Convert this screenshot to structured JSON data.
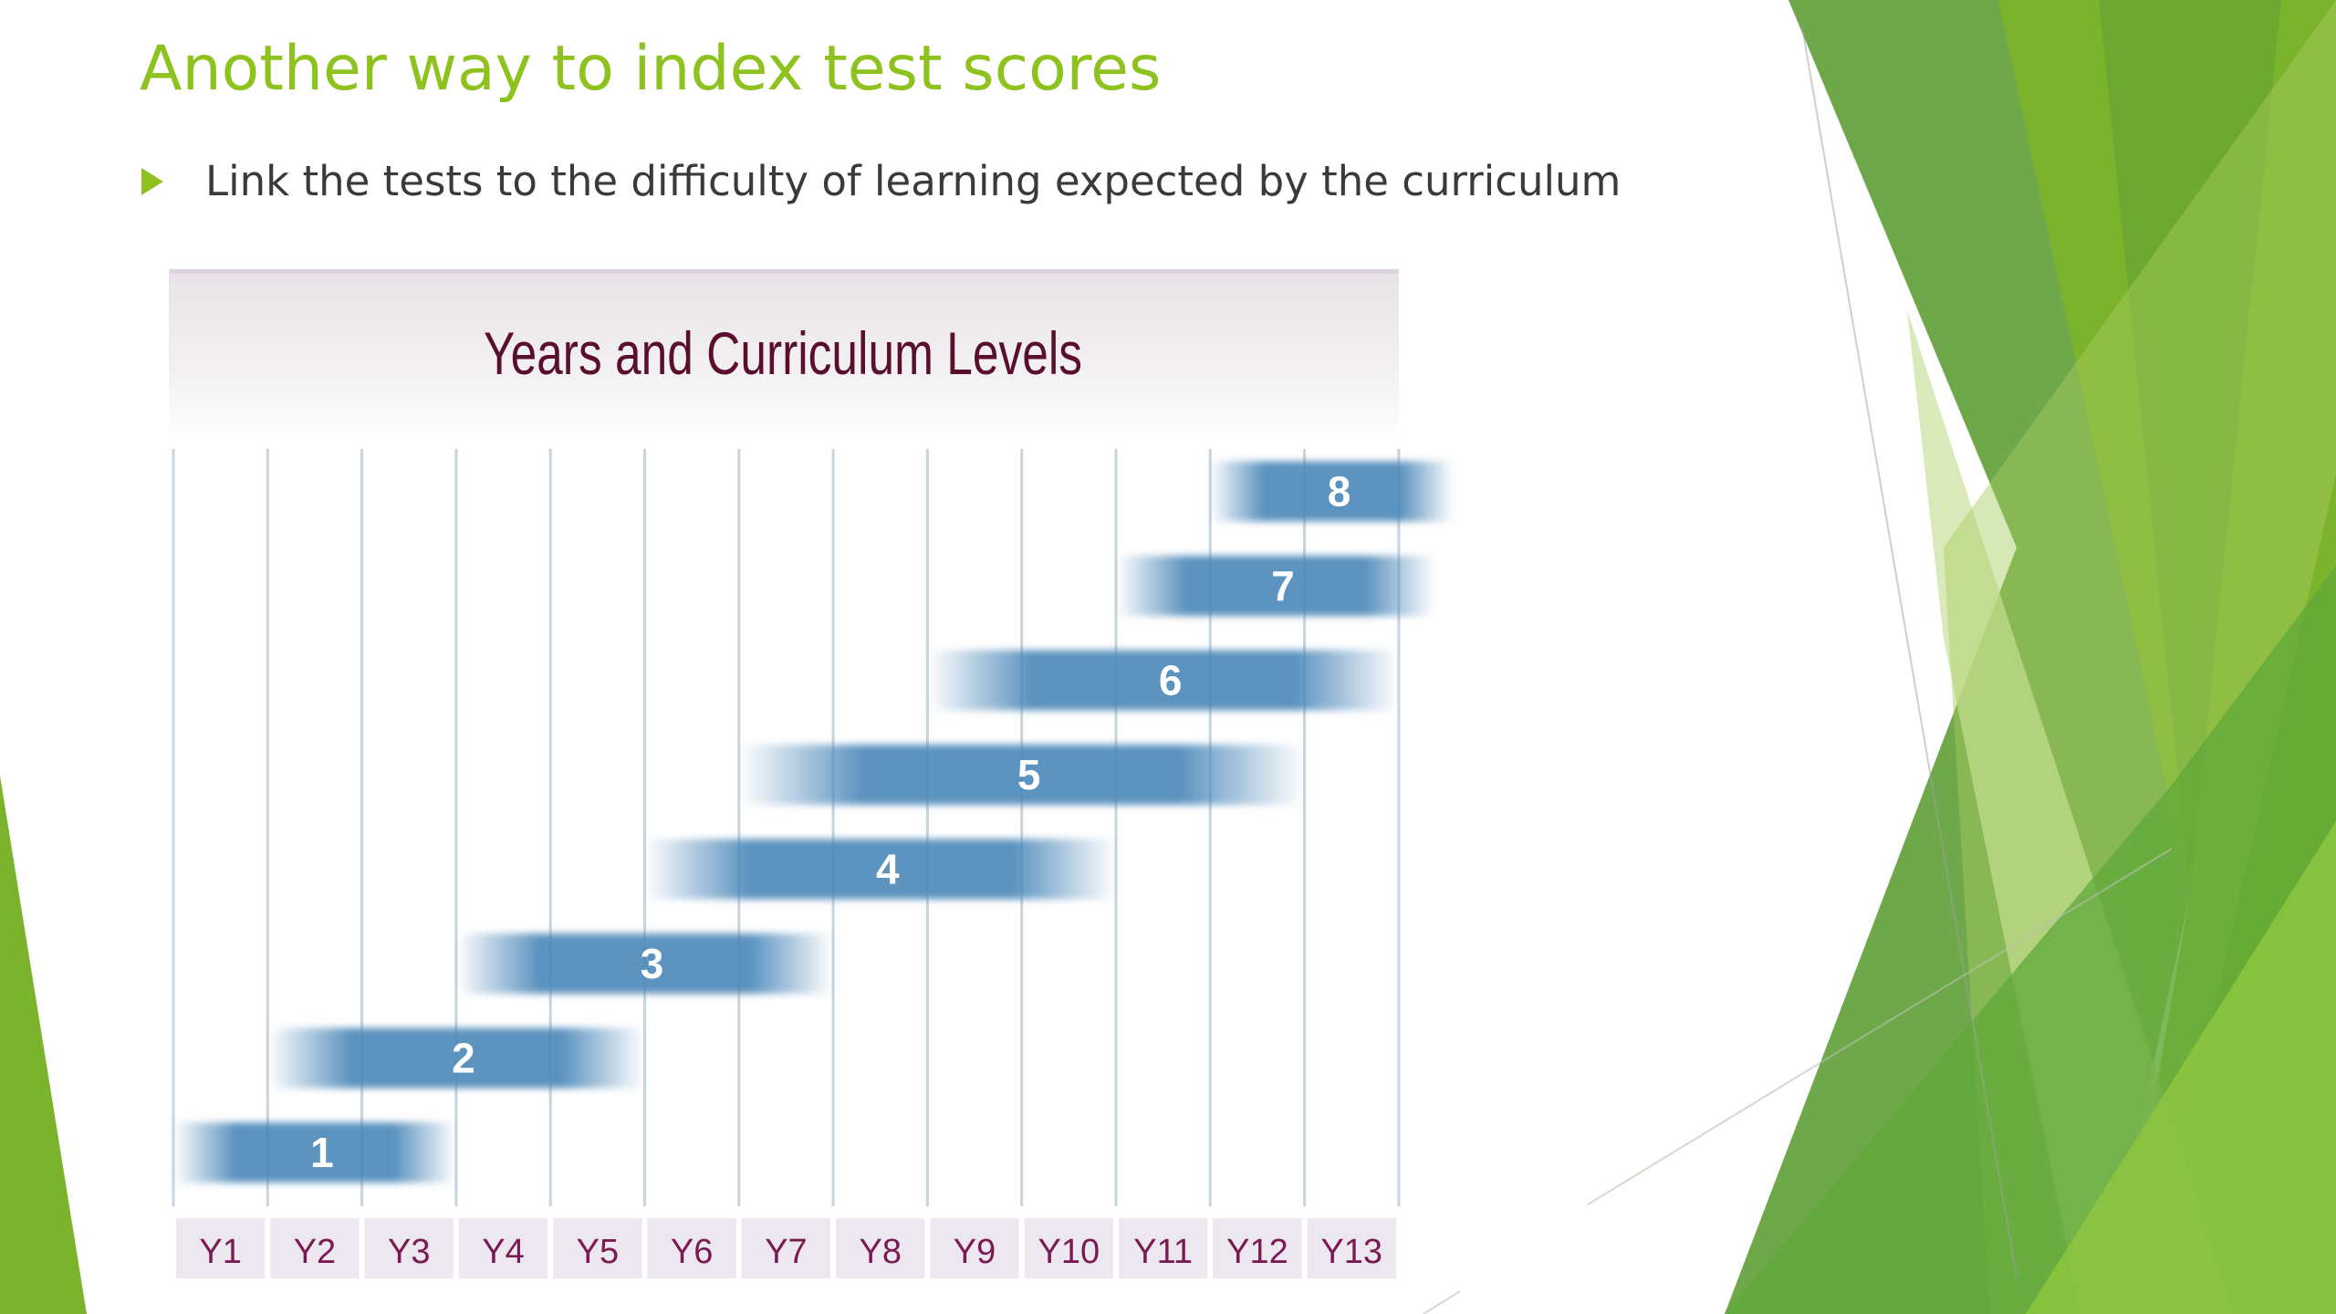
{
  "slide": {
    "title": "Another way to index test scores",
    "bullet": "Link the tests to the difficulty of learning expected by the curriculum"
  },
  "colors": {
    "title_green": "#8dc21f",
    "bar_blue": "#4a87b8",
    "chart_title_maroon": "#5a0f2e",
    "tick_label_maroon": "#7a1a52",
    "tick_bg": "#ede7f0",
    "gridline": "#c9d4db"
  },
  "icons": {
    "bullet": "triangle-right-icon"
  },
  "chart_data": {
    "type": "bar",
    "orientation": "horizontal-range",
    "title": "Years and Curriculum Levels",
    "categories": [
      "Y1",
      "Y2",
      "Y3",
      "Y4",
      "Y5",
      "Y6",
      "Y7",
      "Y8",
      "Y9",
      "Y10",
      "Y11",
      "Y12",
      "Y13"
    ],
    "series": [
      {
        "name": "1",
        "start": "Y1",
        "end": "Y3"
      },
      {
        "name": "2",
        "start": "Y2",
        "end": "Y5"
      },
      {
        "name": "3",
        "start": "Y4",
        "end": "Y7"
      },
      {
        "name": "4",
        "start": "Y6",
        "end": "Y10"
      },
      {
        "name": "5",
        "start": "Y7",
        "end": "Y12"
      },
      {
        "name": "6",
        "start": "Y9",
        "end": "Y13"
      },
      {
        "name": "7",
        "start": "Y11",
        "end": "Y13"
      },
      {
        "name": "8",
        "start": "Y12",
        "end": "Y13"
      }
    ],
    "grid": true,
    "legend": "none"
  }
}
